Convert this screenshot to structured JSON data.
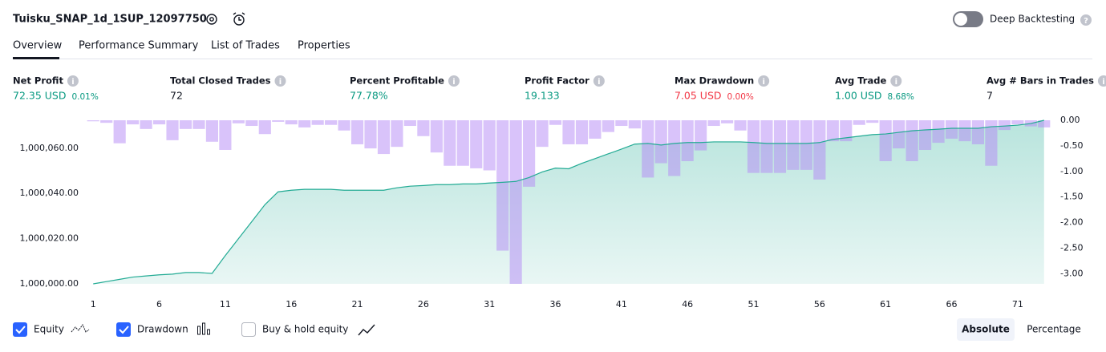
{
  "header": {
    "title": "Tuisku_SNAP_1d_1SUP_12097750",
    "toggle_label": "Deep Backtesting"
  },
  "tabs": [
    "Overview",
    "Performance Summary",
    "List of Trades",
    "Properties"
  ],
  "metrics": [
    {
      "label": "Net Profit",
      "value": "72.35 USD",
      "change": "0.01%",
      "color": "#089981"
    },
    {
      "label": "Total Closed Trades",
      "value": "72",
      "color": "#131722"
    },
    {
      "label": "Percent Profitable",
      "value": "77.78%",
      "color": "#089981"
    },
    {
      "label": "Profit Factor",
      "value": "19.133",
      "color": "#089981"
    },
    {
      "label": "Max Drawdown",
      "value": "7.05 USD",
      "change": "0.00%",
      "color": "#f23645"
    },
    {
      "label": "Avg Trade",
      "value": "1.00 USD",
      "change": "8.68%",
      "color": "#089981"
    },
    {
      "label": "Avg # Bars in Trades",
      "value": "7",
      "color": "#131722"
    }
  ],
  "chart_data": {
    "type": "combo",
    "x": [
      1,
      2,
      3,
      4,
      5,
      6,
      7,
      8,
      9,
      10,
      11,
      12,
      13,
      14,
      15,
      16,
      17,
      18,
      19,
      20,
      21,
      22,
      23,
      24,
      25,
      26,
      27,
      28,
      29,
      30,
      31,
      32,
      33,
      34,
      35,
      36,
      37,
      38,
      39,
      40,
      41,
      42,
      43,
      44,
      45,
      46,
      47,
      48,
      49,
      50,
      51,
      52,
      53,
      54,
      55,
      56,
      57,
      58,
      59,
      60,
      61,
      62,
      63,
      64,
      65,
      66,
      67,
      68,
      69,
      70,
      71,
      72,
      73
    ],
    "xlim": [
      0.5,
      73.5
    ],
    "xticks": [
      1,
      6,
      11,
      16,
      21,
      26,
      31,
      36,
      41,
      46,
      51,
      56,
      61,
      66,
      71
    ],
    "ylim": [
      1000000,
      1000072.35
    ],
    "yticks": [
      {
        "value": 1000000,
        "label": "1,000,000.00"
      },
      {
        "value": 1000020,
        "label": "1,000,020.00"
      },
      {
        "value": 1000040,
        "label": "1,000,040.00"
      },
      {
        "value": 1000060,
        "label": "1,000,060.00"
      }
    ],
    "y2lim": [
      -3.2,
      0
    ],
    "y2ticks": [
      {
        "value": 0,
        "label": "0.00"
      },
      {
        "value": -0.5,
        "label": "-0.50"
      },
      {
        "value": -1,
        "label": "-1.00"
      },
      {
        "value": -1.5,
        "label": "-1.50"
      },
      {
        "value": -2,
        "label": "-2.00"
      },
      {
        "value": -2.5,
        "label": "-2.50"
      },
      {
        "value": -3,
        "label": "-3.00"
      }
    ],
    "series": [
      {
        "name": "Equity",
        "type": "area",
        "color": "#22ab94",
        "values": [
          1000000,
          1000001,
          1000002,
          1000003,
          1000003.5,
          1000004,
          1000004.3,
          1000005,
          1000005,
          1000004.6,
          1000012.5,
          1000020,
          1000027.5,
          1000035,
          1000040.7,
          1000041.4,
          1000041.8,
          1000041.8,
          1000041.8,
          1000041.4,
          1000041.4,
          1000041.4,
          1000041.4,
          1000042.5,
          1000043.2,
          1000043.5,
          1000043.9,
          1000043.9,
          1000044.2,
          1000044.2,
          1000044.6,
          1000044.9,
          1000045.3,
          1000047,
          1000049.5,
          1000051.2,
          1000050.9,
          1000053.3,
          1000055.4,
          1000057.5,
          1000059.6,
          1000061.8,
          1000062.1,
          1000061.4,
          1000062.1,
          1000062.5,
          1000062.5,
          1000062.8,
          1000062.8,
          1000062.8,
          1000062.5,
          1000062.1,
          1000062.1,
          1000062.1,
          1000062.1,
          1000062.5,
          1000063.9,
          1000064.6,
          1000065.3,
          1000066,
          1000066.3,
          1000067,
          1000067.7,
          1000068.1,
          1000068.4,
          1000068.8,
          1000068.8,
          1000068.8,
          1000069.5,
          1000069.8,
          1000070.2,
          1000070.9,
          1000072.35
        ]
      },
      {
        "name": "Drawdown",
        "type": "bar",
        "axis": "y2",
        "color": "#b388f5",
        "values": [
          -0.02,
          -0.05,
          -0.45,
          -0.08,
          -0.17,
          -0.08,
          -0.39,
          -0.17,
          -0.17,
          -0.42,
          -0.58,
          -0.06,
          -0.11,
          -0.27,
          -0.03,
          -0.08,
          -0.14,
          -0.09,
          -0.09,
          -0.2,
          -0.47,
          -0.55,
          -0.66,
          -0.52,
          -0.11,
          -0.31,
          -0.63,
          -0.89,
          -0.89,
          -0.94,
          -0.98,
          -2.55,
          -3.2,
          -1.3,
          -0.52,
          -0.09,
          -0.47,
          -0.47,
          -0.36,
          -0.23,
          -0.11,
          -0.16,
          -1.12,
          -0.84,
          -1.09,
          -0.8,
          -0.59,
          -0.11,
          -0.06,
          -0.2,
          -1.03,
          -1.03,
          -1.03,
          -0.97,
          -0.97,
          -1.16,
          -0.41,
          -0.41,
          -0.09,
          -0.05,
          -0.8,
          -0.55,
          -0.8,
          -0.58,
          -0.44,
          -0.36,
          -0.41,
          -0.47,
          -0.89,
          -0.19,
          -0.08,
          -0.12,
          -0.14
        ]
      }
    ]
  },
  "controls": {
    "buy_hold": "Buy & hold equity",
    "modes": [
      "Absolute",
      "Percentage"
    ]
  }
}
